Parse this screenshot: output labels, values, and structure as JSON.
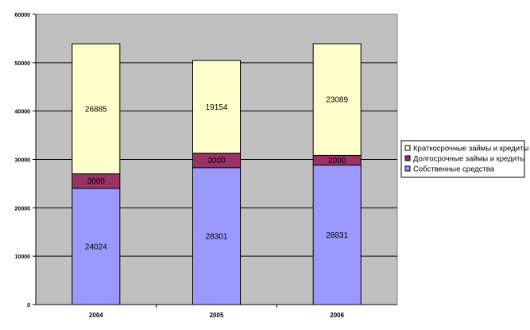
{
  "chart_data": {
    "type": "bar",
    "stacked": true,
    "categories": [
      "2004",
      "2005",
      "2006"
    ],
    "series": [
      {
        "name": "Собственные средства",
        "values": [
          24024,
          28301,
          28831
        ],
        "color": "#9999ff"
      },
      {
        "name": "Долгосрочные займы и кредиты",
        "values": [
          3000,
          3000,
          2000
        ],
        "color": "#993366"
      },
      {
        "name": "Краткосрочные займы и кредиты",
        "values": [
          26885,
          19154,
          23089
        ],
        "color": "#ffffcc"
      }
    ],
    "ylim": [
      0,
      60000
    ],
    "yticks": [
      "0",
      "10000",
      "20000",
      "30000",
      "40000",
      "50000",
      "60000"
    ],
    "grid": true,
    "plot_background": "#c0c0c0",
    "legend_position": "right",
    "legend_order": [
      "Краткосрочные займы и кредиты",
      "Долгосрочные займы и кредиты",
      "Собственные средства"
    ]
  }
}
